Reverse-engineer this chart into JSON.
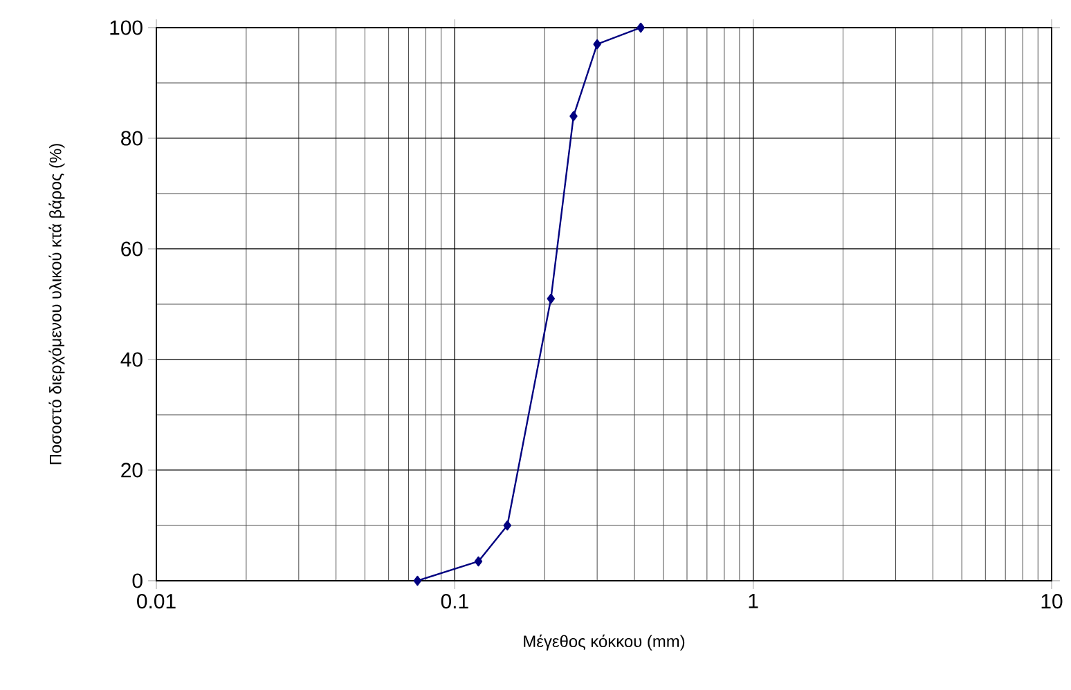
{
  "chart_data": {
    "type": "line",
    "xlabel": "Μέγεθος κόκκου (mm)",
    "ylabel": "Ποσοστό διερχόμενου υλικού κτά βάρος (%)",
    "log": "x",
    "x": [
      0.075,
      0.12,
      0.15,
      0.21,
      0.25,
      0.3,
      0.42
    ],
    "series": [
      {
        "color": "#000080",
        "values": [
          0,
          3.5,
          10,
          51,
          84,
          97,
          100
        ]
      }
    ],
    "xlim": [
      0.01,
      10
    ],
    "ylim": [
      0,
      100
    ],
    "xticks": [
      0.01,
      0.1,
      1,
      10
    ],
    "yticks": [
      0,
      20,
      40,
      60,
      80,
      100
    ],
    "grid": true,
    "marker": "diamond",
    "line_style": "solid"
  }
}
